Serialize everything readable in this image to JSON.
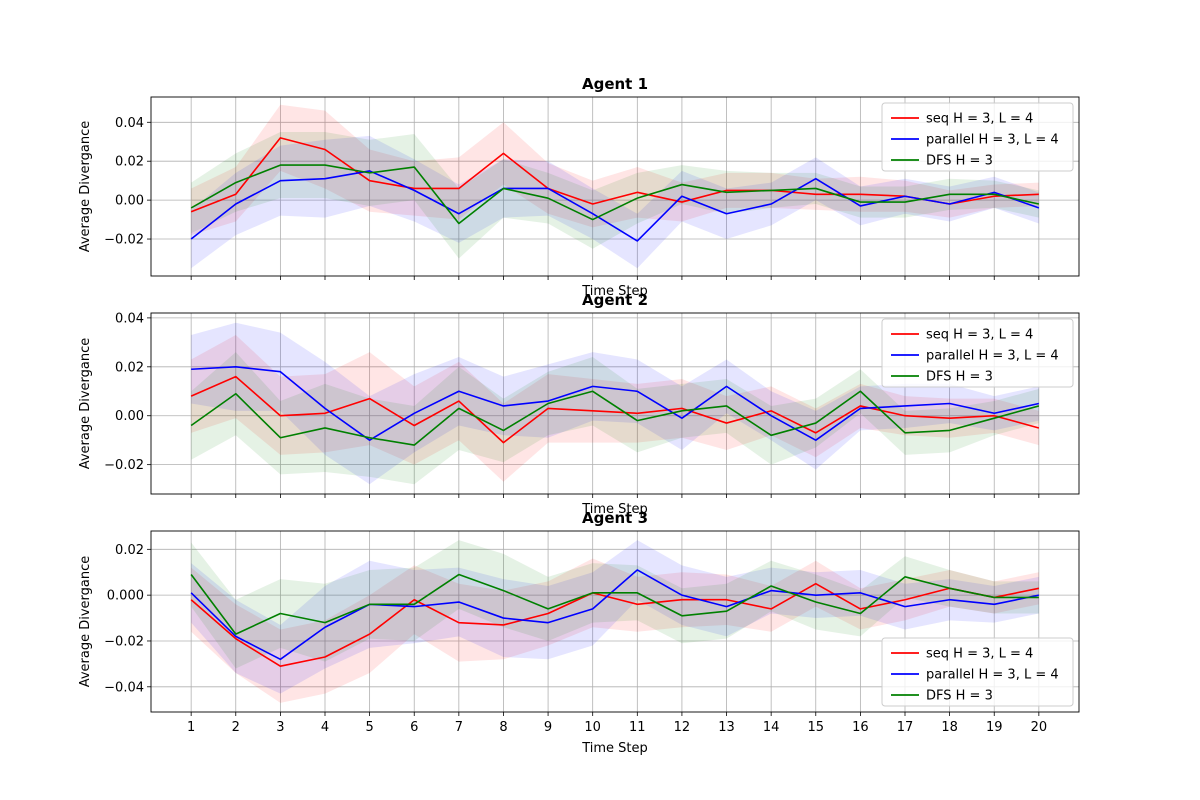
{
  "chart_data": [
    {
      "type": "line",
      "title": "Agent 1",
      "xlabel": "Time Step",
      "ylabel": "Average Divergance",
      "x": [
        1,
        2,
        3,
        4,
        5,
        6,
        7,
        8,
        9,
        10,
        11,
        12,
        13,
        14,
        15,
        16,
        17,
        18,
        19,
        20
      ],
      "xlim": [
        0.1,
        20.9
      ],
      "ylim": [
        -0.039,
        0.053
      ],
      "yticks": [
        -0.02,
        0.0,
        0.02,
        0.04
      ],
      "ytick_labels": [
        "−0.02",
        "0.00",
        "0.02",
        "0.04"
      ],
      "show_x_tick_labels": false,
      "grid": true,
      "legend_loc": "upper right",
      "series": [
        {
          "name": "seq H = 3, L = 4",
          "color": "#ff0000",
          "values": [
            -0.006,
            0.003,
            0.032,
            0.026,
            0.01,
            0.006,
            0.006,
            0.024,
            0.006,
            -0.002,
            0.004,
            -0.001,
            0.005,
            0.005,
            0.003,
            0.003,
            0.002,
            -0.002,
            0.002,
            0.003
          ],
          "band": [
            0.012,
            0.014,
            0.017,
            0.02,
            0.016,
            0.014,
            0.016,
            0.016,
            0.013,
            0.012,
            0.013,
            0.01,
            0.009,
            0.009,
            0.008,
            0.009,
            0.008,
            0.007,
            0.006,
            0.006
          ]
        },
        {
          "name": "parallel H = 3, L = 4",
          "color": "#0000ff",
          "values": [
            -0.02,
            -0.002,
            0.01,
            0.011,
            0.015,
            0.005,
            -0.007,
            0.006,
            0.006,
            -0.007,
            -0.021,
            0.002,
            -0.007,
            -0.002,
            0.011,
            -0.003,
            0.002,
            -0.002,
            0.004,
            -0.004
          ],
          "band": [
            0.015,
            0.016,
            0.018,
            0.02,
            0.018,
            0.016,
            0.015,
            0.015,
            0.014,
            0.013,
            0.014,
            0.013,
            0.013,
            0.011,
            0.011,
            0.01,
            0.009,
            0.009,
            0.008,
            0.008
          ]
        },
        {
          "name": "DFS H = 3",
          "color": "#008000",
          "values": [
            -0.004,
            0.009,
            0.018,
            0.018,
            0.014,
            0.017,
            -0.012,
            0.006,
            0.001,
            -0.01,
            0.001,
            0.008,
            0.004,
            0.005,
            0.006,
            -0.001,
            -0.001,
            0.003,
            0.003,
            -0.002
          ],
          "band": [
            0.013,
            0.015,
            0.017,
            0.017,
            0.017,
            0.017,
            0.018,
            0.015,
            0.013,
            0.015,
            0.013,
            0.01,
            0.011,
            0.009,
            0.008,
            0.008,
            0.008,
            0.008,
            0.007,
            0.007
          ]
        }
      ]
    },
    {
      "type": "line",
      "title": "Agent 2",
      "xlabel": "Time Step",
      "ylabel": "Average Divergance",
      "x": [
        1,
        2,
        3,
        4,
        5,
        6,
        7,
        8,
        9,
        10,
        11,
        12,
        13,
        14,
        15,
        16,
        17,
        18,
        19,
        20
      ],
      "xlim": [
        0.1,
        20.9
      ],
      "ylim": [
        -0.032,
        0.042
      ],
      "yticks": [
        -0.02,
        0.0,
        0.02,
        0.04
      ],
      "ytick_labels": [
        "−0.02",
        "0.00",
        "0.02",
        "0.04"
      ],
      "show_x_tick_labels": false,
      "grid": true,
      "legend_loc": "upper right",
      "series": [
        {
          "name": "seq H = 3, L = 4",
          "color": "#ff0000",
          "values": [
            0.008,
            0.016,
            0.0,
            0.001,
            0.007,
            -0.004,
            0.006,
            -0.011,
            0.003,
            0.002,
            0.001,
            0.003,
            -0.003,
            0.002,
            -0.007,
            0.004,
            0.0,
            -0.001,
            0.0,
            -0.005
          ],
          "band": [
            0.015,
            0.017,
            0.016,
            0.016,
            0.019,
            0.016,
            0.016,
            0.016,
            0.014,
            0.013,
            0.012,
            0.012,
            0.011,
            0.01,
            0.01,
            0.009,
            0.008,
            0.008,
            0.007,
            0.007
          ]
        },
        {
          "name": "parallel H = 3, L = 4",
          "color": "#0000ff",
          "values": [
            0.019,
            0.02,
            0.018,
            0.003,
            -0.01,
            0.001,
            0.01,
            0.004,
            0.006,
            0.012,
            0.01,
            -0.001,
            0.012,
            0.0,
            -0.01,
            0.003,
            0.004,
            0.005,
            0.001,
            0.005
          ],
          "band": [
            0.014,
            0.018,
            0.016,
            0.019,
            0.018,
            0.016,
            0.014,
            0.012,
            0.015,
            0.014,
            0.013,
            0.013,
            0.011,
            0.01,
            0.012,
            0.009,
            0.009,
            0.008,
            0.007,
            0.007
          ]
        },
        {
          "name": "DFS H = 3",
          "color": "#008000",
          "values": [
            -0.004,
            0.009,
            -0.009,
            -0.005,
            -0.009,
            -0.012,
            0.003,
            -0.006,
            0.005,
            0.01,
            -0.002,
            0.002,
            0.004,
            -0.008,
            -0.003,
            0.01,
            -0.007,
            -0.006,
            -0.001,
            0.004
          ],
          "band": [
            0.014,
            0.017,
            0.015,
            0.018,
            0.016,
            0.016,
            0.017,
            0.013,
            0.013,
            0.014,
            0.013,
            0.011,
            0.011,
            0.012,
            0.01,
            0.009,
            0.009,
            0.009,
            0.007,
            0.007
          ]
        }
      ]
    },
    {
      "type": "line",
      "title": "Agent 3",
      "xlabel": "Time Step",
      "ylabel": "Average Divergance",
      "x": [
        1,
        2,
        3,
        4,
        5,
        6,
        7,
        8,
        9,
        10,
        11,
        12,
        13,
        14,
        15,
        16,
        17,
        18,
        19,
        20
      ],
      "xlim": [
        0.1,
        20.9
      ],
      "ylim": [
        -0.051,
        0.028
      ],
      "yticks": [
        -0.04,
        -0.02,
        0.0,
        0.02
      ],
      "ytick_labels": [
        "−0.04",
        "−0.02",
        "0.000",
        "0.02"
      ],
      "show_x_tick_labels": true,
      "grid": true,
      "legend_loc": "lower right",
      "series": [
        {
          "name": "seq H = 3, L = 4",
          "color": "#ff0000",
          "values": [
            -0.002,
            -0.019,
            -0.031,
            -0.027,
            -0.017,
            -0.002,
            -0.012,
            -0.013,
            -0.008,
            0.001,
            -0.004,
            -0.002,
            -0.002,
            -0.006,
            0.005,
            -0.006,
            -0.002,
            0.003,
            -0.001,
            0.003
          ],
          "band": [
            0.014,
            0.015,
            0.016,
            0.016,
            0.017,
            0.015,
            0.017,
            0.015,
            0.014,
            0.015,
            0.012,
            0.012,
            0.011,
            0.01,
            0.01,
            0.009,
            0.009,
            0.008,
            0.007,
            0.007
          ]
        },
        {
          "name": "parallel H = 3, L = 4",
          "color": "#0000ff",
          "values": [
            0.001,
            -0.018,
            -0.028,
            -0.014,
            -0.004,
            -0.005,
            -0.003,
            -0.01,
            -0.012,
            -0.006,
            0.011,
            0.0,
            -0.005,
            0.002,
            0.0,
            0.001,
            -0.005,
            -0.002,
            -0.004,
            0.0
          ],
          "band": [
            0.013,
            0.016,
            0.015,
            0.018,
            0.019,
            0.016,
            0.015,
            0.017,
            0.016,
            0.016,
            0.013,
            0.013,
            0.013,
            0.01,
            0.01,
            0.01,
            0.01,
            0.009,
            0.008,
            0.008
          ]
        },
        {
          "name": "DFS H = 3",
          "color": "#008000",
          "values": [
            0.009,
            -0.017,
            -0.008,
            -0.012,
            -0.004,
            -0.004,
            0.009,
            0.002,
            -0.006,
            0.001,
            0.001,
            -0.009,
            -0.007,
            0.004,
            -0.003,
            -0.008,
            0.008,
            0.003,
            -0.001,
            -0.001
          ],
          "band": [
            0.014,
            0.015,
            0.015,
            0.017,
            0.015,
            0.016,
            0.015,
            0.016,
            0.014,
            0.013,
            0.012,
            0.012,
            0.012,
            0.011,
            0.012,
            0.01,
            0.009,
            0.008,
            0.007,
            0.007
          ]
        }
      ]
    }
  ]
}
